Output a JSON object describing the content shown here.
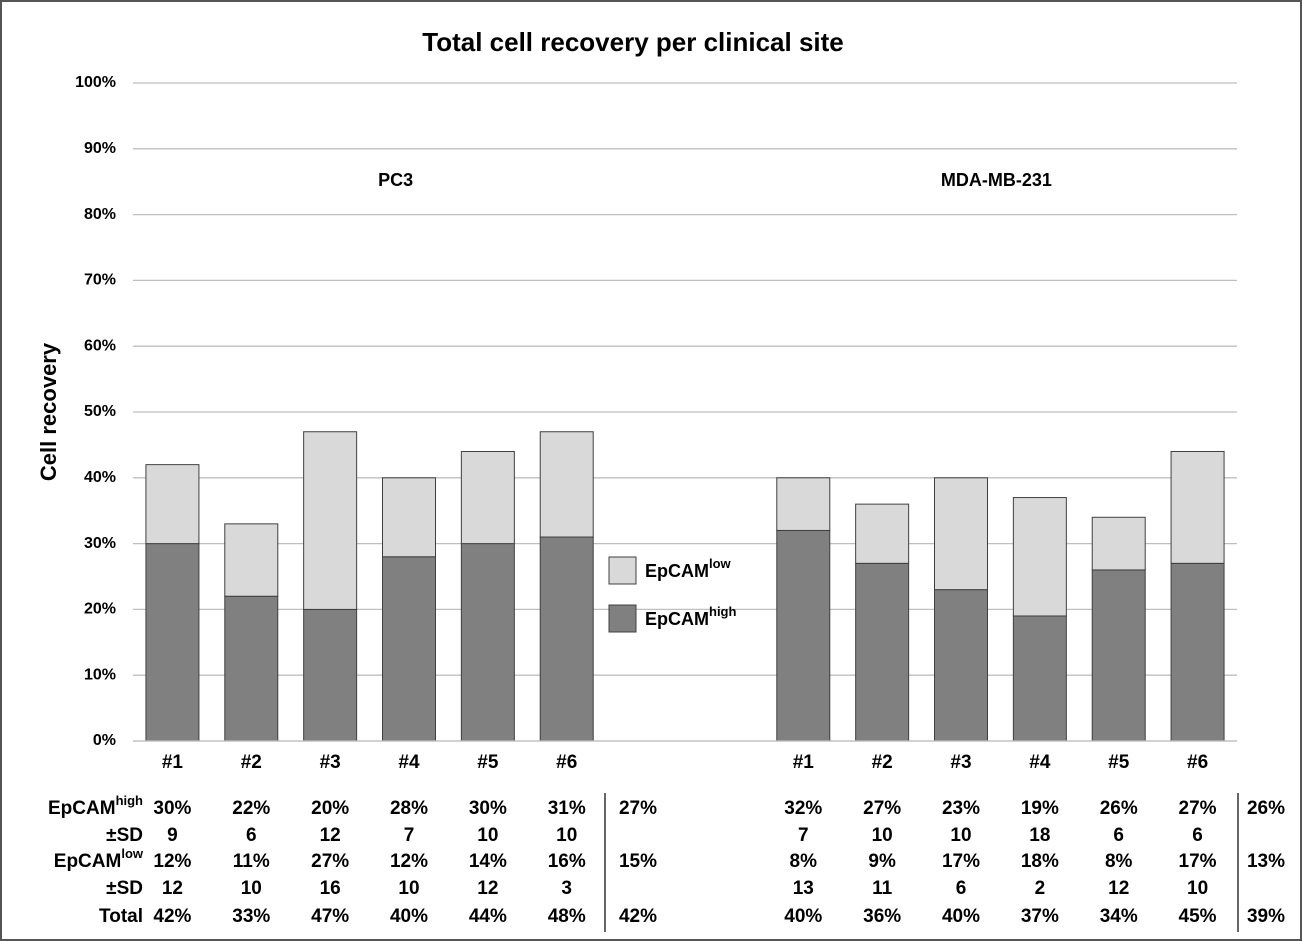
{
  "chart_data": {
    "type": "bar",
    "stacked": true,
    "title": "Total cell recovery per clinical site",
    "ylabel": "Cell recovery",
    "groups": [
      "PC3",
      "MDA-MB-231"
    ],
    "categories": [
      "#1",
      "#2",
      "#3",
      "#4",
      "#5",
      "#6",
      null,
      null,
      "#1",
      "#2",
      "#3",
      "#4",
      "#5",
      "#6"
    ],
    "ylim": [
      0,
      100
    ],
    "yticks": [
      {
        "value": 0,
        "label": "0%"
      },
      {
        "value": 10,
        "label": "10%"
      },
      {
        "value": 20,
        "label": "20%"
      },
      {
        "value": 30,
        "label": "30%"
      },
      {
        "value": 40,
        "label": "40%"
      },
      {
        "value": 50,
        "label": "50%"
      },
      {
        "value": 60,
        "label": "60%"
      },
      {
        "value": 70,
        "label": "70%"
      },
      {
        "value": 80,
        "label": "80%"
      },
      {
        "value": 90,
        "label": "90%"
      },
      {
        "value": 100,
        "label": "100%"
      }
    ],
    "grid": true,
    "legend": "center",
    "sd_label": "±SD",
    "series": [
      {
        "name": "EpCAM",
        "superscript": "high",
        "color": "#808080",
        "values": [
          30,
          22,
          20,
          28,
          30,
          31,
          null,
          null,
          32,
          27,
          23,
          19,
          26,
          27
        ],
        "value_labels": [
          "30%",
          "22%",
          "20%",
          "28%",
          "30%",
          "31%",
          null,
          null,
          "32%",
          "27%",
          "23%",
          "19%",
          "26%",
          "27%"
        ],
        "sd": [
          9,
          6,
          12,
          7,
          10,
          10,
          null,
          null,
          7,
          10,
          10,
          18,
          6,
          6
        ],
        "mean_labels": [
          "27%",
          "26%"
        ]
      },
      {
        "name": "EpCAM",
        "superscript": "low",
        "color": "#d9d9d9",
        "values": [
          12,
          11,
          27,
          12,
          14,
          16,
          null,
          null,
          8,
          9,
          17,
          18,
          8,
          17
        ],
        "value_labels": [
          "12%",
          "11%",
          "27%",
          "12%",
          "14%",
          "16%",
          null,
          null,
          "8%",
          "9%",
          "17%",
          "18%",
          "8%",
          "17%"
        ],
        "sd": [
          12,
          10,
          16,
          10,
          12,
          3,
          null,
          null,
          13,
          11,
          6,
          2,
          12,
          10
        ],
        "mean_labels": [
          "15%",
          "13%"
        ]
      }
    ],
    "total": {
      "label": "Total",
      "value_labels": [
        "42%",
        "33%",
        "47%",
        "40%",
        "44%",
        "48%",
        null,
        null,
        "40%",
        "36%",
        "40%",
        "37%",
        "34%",
        "45%"
      ],
      "mean_labels": [
        "42%",
        "39%"
      ]
    }
  }
}
